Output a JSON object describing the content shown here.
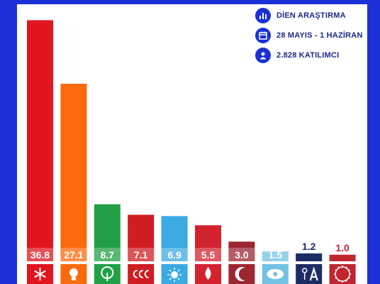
{
  "colors": {
    "frame": "#1a30d6",
    "info_text": "#1a2a88"
  },
  "info": [
    {
      "icon": "bar-chart-icon",
      "text": "DİEN ARAŞTIRMA"
    },
    {
      "icon": "calendar-icon",
      "text": "28 MAYIS - 1 HAZİRAN"
    },
    {
      "icon": "person-icon",
      "text": "2.828 KATILIMCI"
    }
  ],
  "chart_data": {
    "type": "bar",
    "title": "",
    "xlabel": "",
    "ylabel": "",
    "ylim": [
      0,
      37.5
    ],
    "grid": false,
    "values": [
      36.8,
      27.1,
      8.7,
      7.1,
      6.9,
      5.5,
      3.0,
      1.5,
      1.2,
      1.0
    ],
    "value_labels": [
      "36.8",
      "27.1",
      "8.7",
      "7.1",
      "6.9",
      "5.5",
      "3.0",
      "1.5",
      "1.2",
      "1.0"
    ],
    "colors": [
      "#e0151f",
      "#fb6a0c",
      "#21a046",
      "#d01c23",
      "#3aaae3",
      "#d2232f",
      "#9c2631",
      "#71c2e3",
      "#1c2c64",
      "#c0262f"
    ],
    "label_style": [
      "inside",
      "inside",
      "inside",
      "inside",
      "inside",
      "inside",
      "inside",
      "inside",
      "above",
      "above"
    ],
    "logos": [
      "six-arrows-logo",
      "lightbulb-logo",
      "tree-logo",
      "three-crescents-logo",
      "sun-logo",
      "torch-flame-logo",
      "crescent-logo",
      "dove-logo",
      "anchor-logo",
      "tip-logo"
    ]
  }
}
